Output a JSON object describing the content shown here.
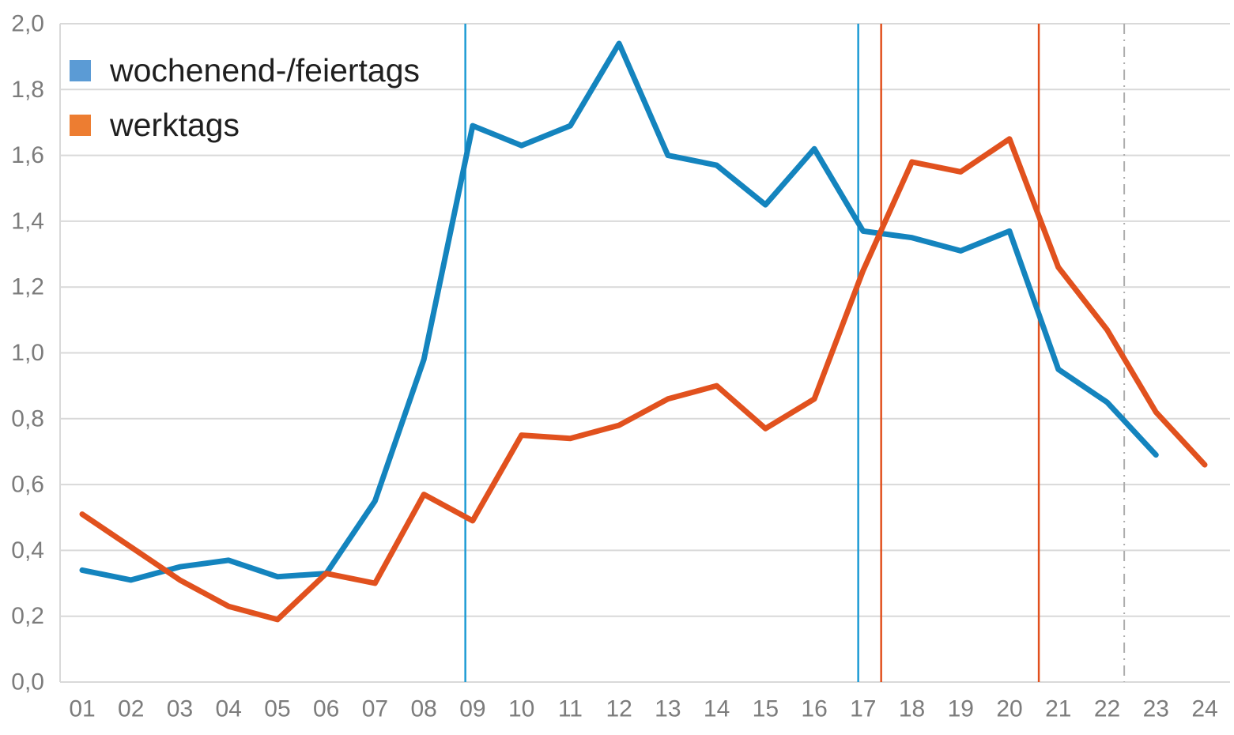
{
  "chart_data": {
    "type": "line",
    "title": "",
    "xlabel": "",
    "ylabel": "",
    "x_labels": [
      "01",
      "02",
      "03",
      "04",
      "05",
      "06",
      "07",
      "08",
      "09",
      "10",
      "11",
      "12",
      "13",
      "14",
      "15",
      "16",
      "17",
      "18",
      "19",
      "20",
      "21",
      "22",
      "23",
      "24"
    ],
    "y_tick_labels": [
      "0,0",
      "0,2",
      "0,4",
      "0,6",
      "0,8",
      "1,0",
      "1,2",
      "1,4",
      "1,6",
      "1,8",
      "2,0"
    ],
    "y_tick_values": [
      0.0,
      0.2,
      0.4,
      0.6,
      0.8,
      1.0,
      1.2,
      1.4,
      1.6,
      1.8,
      2.0
    ],
    "ylim": [
      0.0,
      2.0
    ],
    "xlim_hours": [
      1,
      24
    ],
    "grid": "horizontal",
    "legend_position": "top-left-inside",
    "series": [
      {
        "name": "wochenend-/feiertags",
        "color": "#1484BE",
        "swatch_color": "#5B9BD5",
        "values": [
          0.34,
          0.31,
          0.35,
          0.37,
          0.32,
          0.33,
          0.55,
          0.98,
          1.69,
          1.63,
          1.69,
          1.94,
          1.6,
          1.57,
          1.45,
          1.62,
          1.37,
          1.35,
          1.31,
          1.37,
          0.95,
          0.85,
          0.69,
          null
        ]
      },
      {
        "name": "werktags",
        "color": "#E1511E",
        "swatch_color": "#ED7D31",
        "values": [
          0.51,
          0.41,
          0.31,
          0.23,
          0.19,
          0.33,
          0.3,
          0.57,
          0.49,
          0.75,
          0.74,
          0.78,
          0.86,
          0.9,
          0.77,
          0.86,
          1.25,
          1.58,
          1.55,
          1.65,
          1.26,
          1.07,
          0.82,
          0.66
        ]
      }
    ],
    "reference_lines": [
      {
        "x_hour": 8.85,
        "color": "#1E9BD4",
        "style": "solid",
        "series": "wochenend-/feiertags"
      },
      {
        "x_hour": 16.9,
        "color": "#1E9BD4",
        "style": "solid",
        "series": "wochenend-/feiertags"
      },
      {
        "x_hour": 17.37,
        "color": "#E1511E",
        "style": "solid",
        "series": "werktags"
      },
      {
        "x_hour": 20.6,
        "color": "#E1511E",
        "style": "solid",
        "series": "werktags"
      },
      {
        "x_hour": 22.35,
        "color": "#ADADAD",
        "style": "dash-dot",
        "series": ""
      }
    ],
    "axis_style": {
      "tick_label_color": "#7C7C7C",
      "grid_color": "#D9D9D9"
    }
  }
}
